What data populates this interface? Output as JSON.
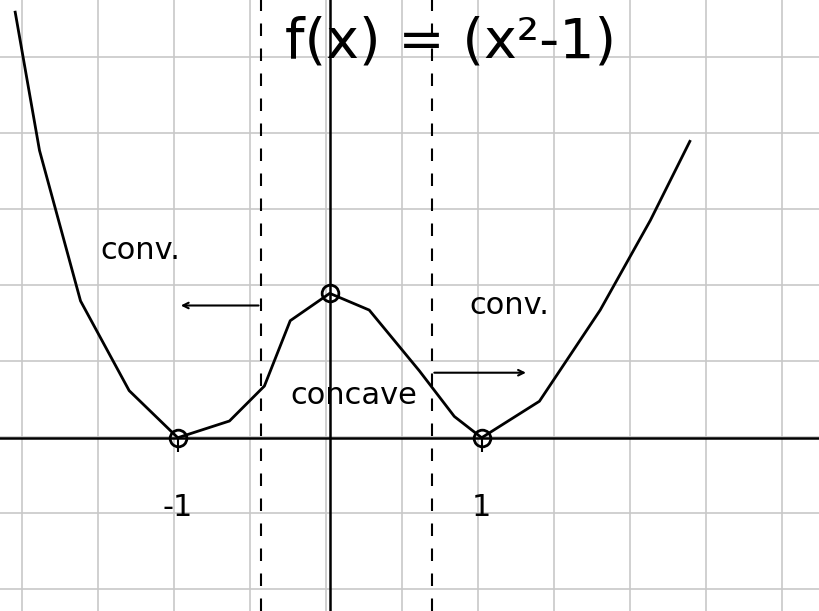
{
  "chart_data": {
    "type": "line",
    "title": "f(x) = (x²-1)",
    "x": [
      -2.07,
      -1.91,
      -1.64,
      -1.32,
      -1.0,
      -0.66,
      -0.43,
      -0.26,
      0.0,
      0.26,
      0.59,
      0.82,
      1.0,
      1.38,
      1.78,
      2.11,
      2.37
    ],
    "values": [
      2.8,
      1.89,
      0.9,
      0.31,
      0.0,
      0.11,
      0.34,
      0.77,
      0.95,
      0.84,
      0.44,
      0.14,
      0.0,
      0.24,
      0.84,
      1.43,
      1.95
    ],
    "color": "#000000",
    "xlim": [
      -2.17,
      3.22
    ],
    "ylim": [
      -1.14,
      2.88
    ],
    "xticks": [
      -1,
      1
    ],
    "yticks": [],
    "tick_labels": "x",
    "annotations": [
      {
        "text": "conv.",
        "x": -1.51,
        "y": 1.23
      },
      {
        "text": "conv.",
        "x": 0.92,
        "y": 0.87
      },
      {
        "text": "concave",
        "x": -0.26,
        "y": 0.28
      }
    ],
    "inflection_x": [
      -0.45,
      0.67
    ],
    "marked_points": {
      "x": [
        -1,
        0,
        1
      ],
      "y": [
        0,
        0.95,
        0
      ]
    }
  }
}
